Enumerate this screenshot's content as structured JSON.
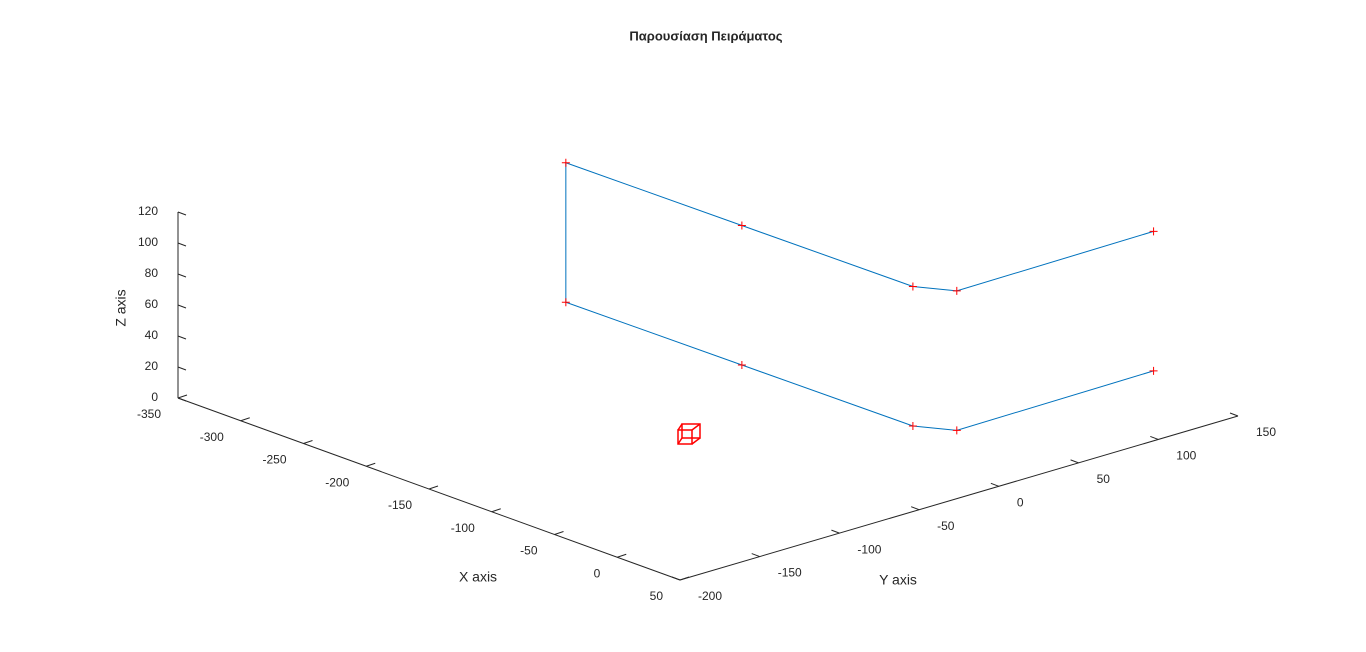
{
  "chart_data": {
    "type": "line3d",
    "title": "Παρουσίαση Πειράματος",
    "xlabel": "X axis",
    "ylabel": "Y axis",
    "zlabel": "Z axis",
    "xlim": [
      -350,
      50
    ],
    "xticks": [
      -350,
      -300,
      -250,
      -200,
      -150,
      -100,
      -50,
      0,
      50
    ],
    "ylim": [
      -200,
      150
    ],
    "yticks": [
      -200,
      -150,
      -100,
      -50,
      0,
      50,
      100,
      150
    ],
    "zlim": [
      0,
      120
    ],
    "zticks": [
      0,
      20,
      40,
      60,
      80,
      100,
      120
    ],
    "grid": false,
    "series": [
      {
        "color": "#0072bd",
        "marker": "+",
        "marker_color": "#ff0000",
        "x": [
          78,
          80,
          59,
          -76,
          -215,
          -215,
          -76,
          59,
          80,
          78
        ],
        "y": [
          75,
          -50,
          -61,
          -62,
          -63,
          -63,
          -62,
          -61,
          -50,
          75
        ],
        "z": [
          150,
          150,
          150,
          150,
          150,
          60,
          60,
          60,
          60,
          60
        ]
      }
    ]
  }
}
